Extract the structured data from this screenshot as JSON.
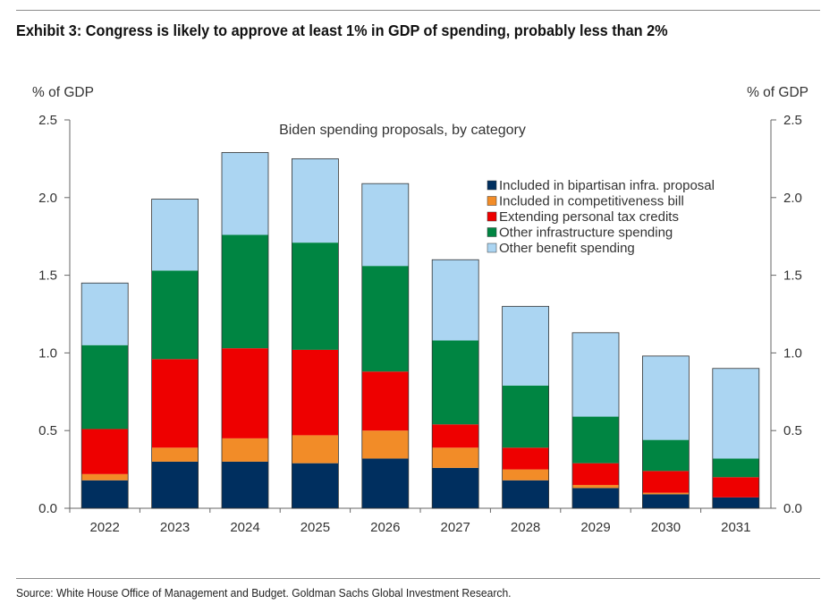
{
  "header": {
    "title": "Exhibit 3: Congress is likely to approve at least 1% in GDP of spending, probably less than 2%"
  },
  "footer": {
    "source": "Source: White House Office of Management and Budget. Goldman Sachs Global Investment Research."
  },
  "chart_data": {
    "type": "bar",
    "stacked": true,
    "title": "Biden spending proposals, by category",
    "ylabel_left": "% of GDP",
    "ylabel_right": "% of GDP",
    "ylim": [
      0,
      2.5
    ],
    "yticks": [
      "0.0",
      "0.5",
      "1.0",
      "1.5",
      "2.0",
      "2.5"
    ],
    "grid": false,
    "legend_position": "top-right",
    "categories": [
      "2022",
      "2023",
      "2024",
      "2025",
      "2026",
      "2027",
      "2028",
      "2029",
      "2030",
      "2031"
    ],
    "series": [
      {
        "name": "Included in bipartisan infra. proposal",
        "color": "#002f5f",
        "values": [
          0.18,
          0.3,
          0.3,
          0.29,
          0.32,
          0.26,
          0.18,
          0.13,
          0.09,
          0.07
        ]
      },
      {
        "name": "Included in competitiveness bill",
        "color": "#f28c28",
        "values": [
          0.04,
          0.09,
          0.15,
          0.18,
          0.18,
          0.13,
          0.07,
          0.02,
          0.01,
          0.0
        ]
      },
      {
        "name": "Extending personal tax credits",
        "color": "#ee0000",
        "values": [
          0.29,
          0.57,
          0.58,
          0.55,
          0.38,
          0.15,
          0.14,
          0.14,
          0.14,
          0.13
        ]
      },
      {
        "name": "Other infrastructure spending",
        "color": "#008542",
        "values": [
          0.54,
          0.57,
          0.73,
          0.69,
          0.68,
          0.54,
          0.4,
          0.3,
          0.2,
          0.12
        ]
      },
      {
        "name": "Other benefit spending",
        "color": "#abd5f2",
        "values": [
          0.4,
          0.46,
          0.53,
          0.54,
          0.53,
          0.52,
          0.51,
          0.54,
          0.54,
          0.58
        ]
      }
    ]
  }
}
